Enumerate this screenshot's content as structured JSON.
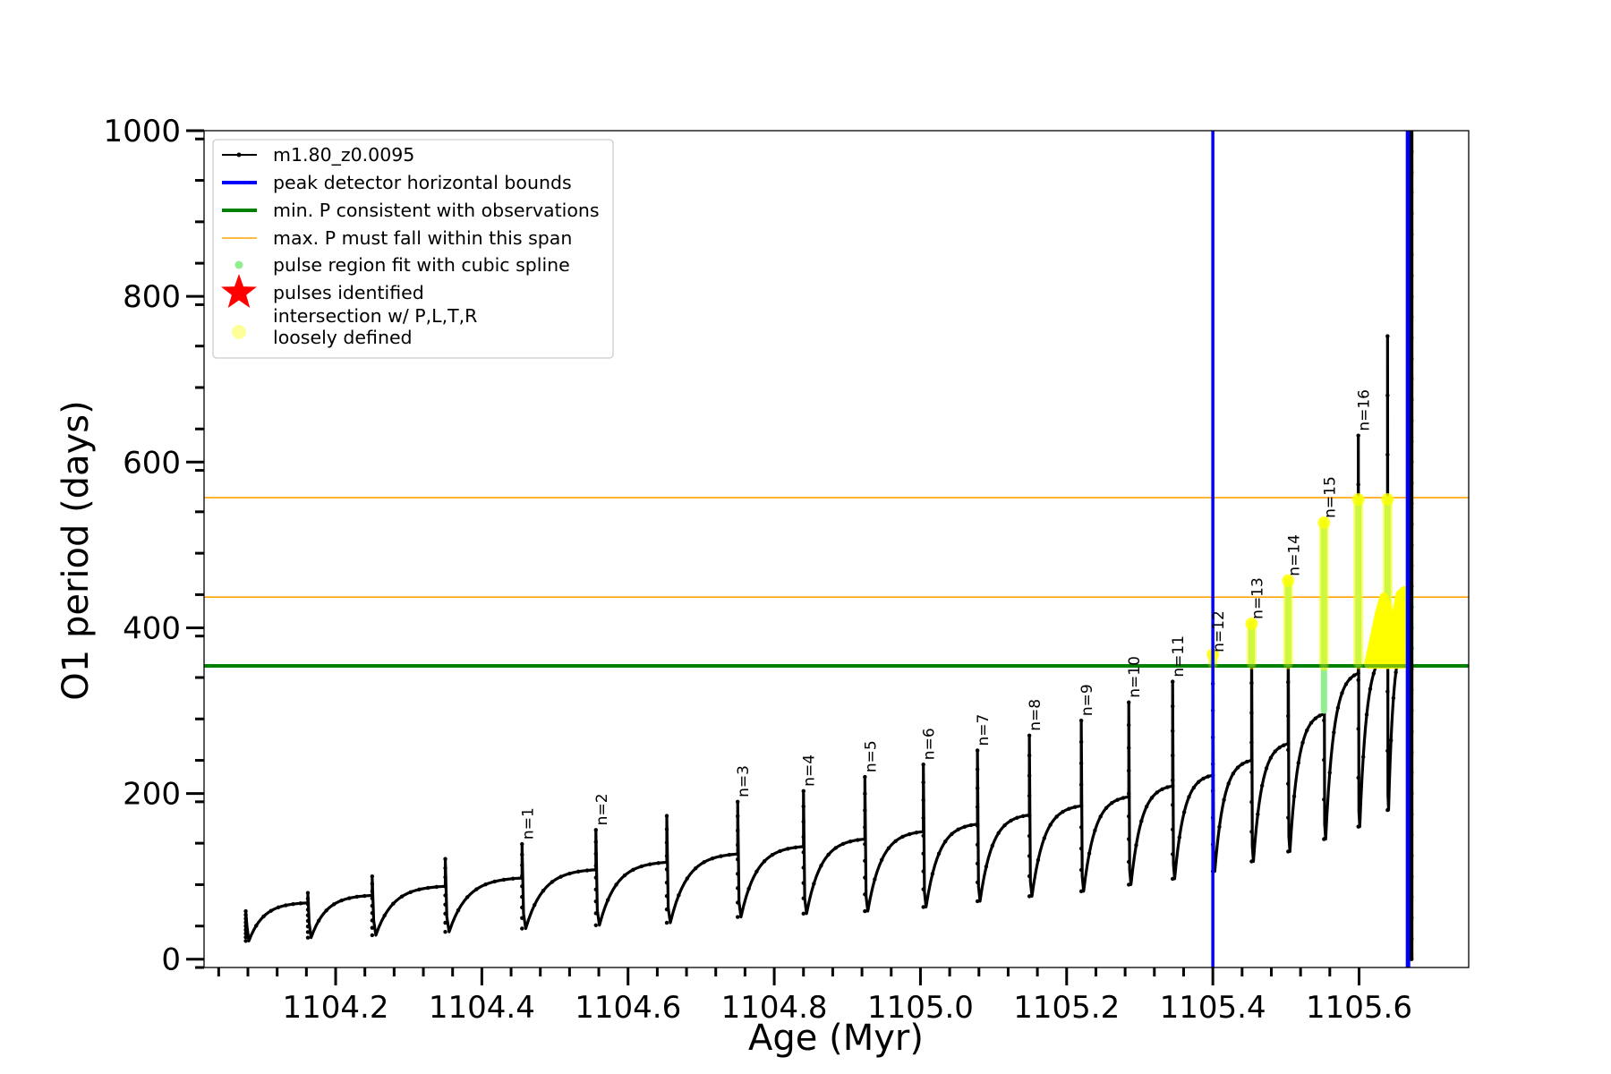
{
  "chart_data": {
    "type": "scatter",
    "xlabel": "Age (Myr)",
    "ylabel": "O1 period (days)",
    "xlim": [
      1104.02,
      1105.75
    ],
    "ylim": [
      -10,
      1000
    ],
    "x_ticks": [
      1104.2,
      1104.4,
      1104.6,
      1104.8,
      1105.0,
      1105.2,
      1105.4,
      1105.6
    ],
    "x_tick_labels": [
      "1104.2",
      "1104.4",
      "1104.6",
      "1104.8",
      "1105.0",
      "1105.2",
      "1105.4",
      "1105.6"
    ],
    "y_ticks": [
      0,
      200,
      400,
      600,
      800,
      1000
    ],
    "y_tick_labels": [
      "0",
      "200",
      "400",
      "600",
      "800",
      "1000"
    ],
    "legend_position": "upper-left",
    "legend": [
      {
        "label": "m1.80_z0.0095",
        "color": "#000000",
        "kind": "line-dot"
      },
      {
        "label": "peak detector horizontal bounds",
        "color": "#0000ff",
        "kind": "line"
      },
      {
        "label": "min. P consistent with observations",
        "color": "#008000",
        "kind": "line"
      },
      {
        "label": "max. P must fall within this span",
        "color": "#ffa500",
        "kind": "thin-line"
      },
      {
        "label": "pulse region fit with cubic spline",
        "color": "#90ee90",
        "kind": "dot"
      },
      {
        "label": "pulses identified",
        "color": "#ff0000",
        "kind": "star"
      },
      {
        "label": "intersection w/ P,L,T,R",
        "label2": "loosely defined",
        "color": "#ffff99",
        "kind": "big-dot"
      }
    ],
    "vertical_lines": [
      {
        "x": 1105.4,
        "color": "#0000ff",
        "label": "peak detector horizontal bounds"
      },
      {
        "x": 1105.667,
        "color": "#0000ff",
        "label": "peak detector horizontal bounds"
      }
    ],
    "horizontal_lines": [
      {
        "y": 354,
        "color": "#008000",
        "label": "min. P consistent with observations"
      },
      {
        "y": 437,
        "color": "#ffa500",
        "label": "max. P must fall within this span"
      },
      {
        "y": 557,
        "color": "#ffa500",
        "label": "max. P must fall within this span"
      }
    ],
    "cycles": [
      {
        "x": 1104.077,
        "peak": 58,
        "min": 22,
        "end": 68,
        "label": ""
      },
      {
        "x": 1104.162,
        "peak": 80,
        "min": 26,
        "end": 77,
        "label": ""
      },
      {
        "x": 1104.25,
        "peak": 100,
        "min": 29,
        "end": 88,
        "label": ""
      },
      {
        "x": 1104.35,
        "peak": 121,
        "min": 33,
        "end": 98,
        "label": ""
      },
      {
        "x": 1104.455,
        "peak": 139,
        "min": 37,
        "end": 108,
        "label": "n=1"
      },
      {
        "x": 1104.556,
        "peak": 156,
        "min": 41,
        "end": 117,
        "label": "n=2"
      },
      {
        "x": 1104.653,
        "peak": 173,
        "min": 44,
        "end": 127,
        "label": ""
      },
      {
        "x": 1104.75,
        "peak": 190,
        "min": 51,
        "end": 136,
        "label": "n=3"
      },
      {
        "x": 1104.84,
        "peak": 203,
        "min": 55,
        "end": 145,
        "label": "n=4"
      },
      {
        "x": 1104.924,
        "peak": 220,
        "min": 58,
        "end": 154,
        "label": "n=5"
      },
      {
        "x": 1105.004,
        "peak": 235,
        "min": 63,
        "end": 163,
        "label": "n=6"
      },
      {
        "x": 1105.078,
        "peak": 252,
        "min": 70,
        "end": 174,
        "label": "n=7"
      },
      {
        "x": 1105.149,
        "peak": 270,
        "min": 76,
        "end": 185,
        "label": "n=8"
      },
      {
        "x": 1105.22,
        "peak": 288,
        "min": 82,
        "end": 196,
        "label": "n=9"
      },
      {
        "x": 1105.285,
        "peak": 310,
        "min": 90,
        "end": 209,
        "label": "n=10"
      },
      {
        "x": 1105.345,
        "peak": 335,
        "min": 97,
        "end": 222,
        "label": "n=11"
      },
      {
        "x": 1105.4,
        "peak": 365,
        "min": 106,
        "end": 240,
        "label": "n=12"
      },
      {
        "x": 1105.453,
        "peak": 405,
        "min": 118,
        "end": 260,
        "label": "n=13"
      },
      {
        "x": 1105.503,
        "peak": 457,
        "min": 130,
        "end": 296,
        "label": "n=14"
      },
      {
        "x": 1105.552,
        "peak": 527,
        "min": 145,
        "end": 345,
        "label": "n=15"
      },
      {
        "x": 1105.599,
        "peak": 632,
        "min": 160,
        "end": 370,
        "label": "n=16"
      },
      {
        "x": 1105.639,
        "peak": 752,
        "min": 180,
        "end": 390,
        "label": ""
      }
    ],
    "spline_pulses": [
      {
        "x": 1105.4,
        "lo": 356,
        "hi": 368
      },
      {
        "x": 1105.453,
        "lo": 356,
        "hi": 405
      },
      {
        "x": 1105.503,
        "lo": 356,
        "hi": 457
      },
      {
        "x": 1105.552,
        "lo": 300,
        "hi": 527
      },
      {
        "x": 1105.599,
        "lo": 356,
        "hi": 555
      },
      {
        "x": 1105.639,
        "lo": 356,
        "hi": 555
      }
    ],
    "final_spike": {
      "x": 1105.667,
      "lo": 0,
      "hi": 1000
    }
  }
}
